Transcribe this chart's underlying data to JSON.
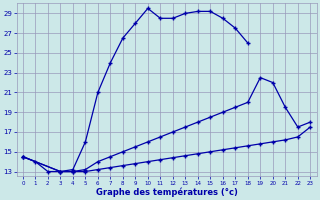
{
  "xlabel": "Graphe des températures (°c)",
  "bg_color": "#cce8e8",
  "grid_color": "#9999bb",
  "line_color": "#0000aa",
  "x_ticks": [
    0,
    1,
    2,
    3,
    4,
    5,
    6,
    7,
    8,
    9,
    10,
    11,
    12,
    13,
    14,
    15,
    16,
    17,
    18,
    19,
    20,
    21,
    22,
    23
  ],
  "xlim": [
    -0.5,
    23.5
  ],
  "ylim": [
    12.5,
    30.0
  ],
  "y_ticks": [
    13,
    15,
    17,
    19,
    21,
    23,
    25,
    27,
    29
  ],
  "line1_x": [
    0,
    1,
    2,
    3,
    4,
    5,
    6,
    7,
    8,
    9,
    10,
    11,
    12,
    13,
    14,
    15,
    16,
    17,
    18
  ],
  "line1_y": [
    14.5,
    14.0,
    13.0,
    13.0,
    13.2,
    16.0,
    21.0,
    24.0,
    26.5,
    28.0,
    29.5,
    28.5,
    28.5,
    29.0,
    29.2,
    29.2,
    28.5,
    27.5,
    26.0
  ],
  "line2_x": [
    0,
    3,
    4,
    5,
    6,
    7,
    8,
    9,
    10,
    11,
    12,
    13,
    14,
    15,
    16,
    17,
    18,
    19,
    20,
    21,
    22,
    23
  ],
  "line2_y": [
    14.5,
    13.0,
    13.0,
    13.2,
    14.0,
    14.5,
    15.0,
    15.5,
    16.0,
    16.5,
    17.0,
    17.5,
    18.0,
    18.5,
    19.0,
    19.5,
    20.0,
    22.5,
    22.0,
    19.5,
    17.5,
    18.0
  ],
  "line3_x": [
    0,
    3,
    4,
    5,
    6,
    7,
    8,
    9,
    10,
    11,
    12,
    13,
    14,
    15,
    16,
    17,
    18,
    19,
    20,
    21,
    22,
    23
  ],
  "line3_y": [
    14.5,
    13.0,
    13.0,
    13.0,
    13.2,
    13.4,
    13.6,
    13.8,
    14.0,
    14.2,
    14.4,
    14.6,
    14.8,
    15.0,
    15.2,
    15.4,
    15.6,
    15.8,
    16.0,
    16.2,
    16.5,
    17.5
  ]
}
